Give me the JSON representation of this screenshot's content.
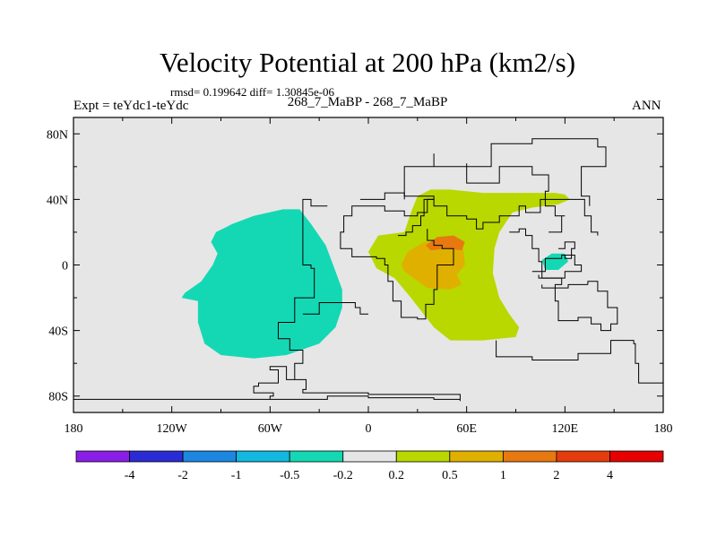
{
  "header": {
    "title": "Velocity Potential at 200 hPa (km2/s)",
    "stats": "rmsd= 0.199642 diff= 1.30845e-06",
    "expt": "Expt = teYdc1-teYdc",
    "subtitle": "268_7_MaBP - 268_7_MaBP",
    "season": "ANN"
  },
  "chart_data": {
    "type": "heatmap",
    "title": "Velocity Potential at 200 hPa (km2/s)",
    "xlabel": "",
    "ylabel": "",
    "xlim": [
      -180,
      180
    ],
    "ylim": [
      -90,
      90
    ],
    "x_tick_values": [
      -180,
      -120,
      -60,
      0,
      60,
      120,
      180
    ],
    "x_tick_labels": [
      "180",
      "120W",
      "60W",
      "0",
      "60E",
      "120E",
      "180"
    ],
    "y_tick_values": [
      80,
      40,
      0,
      -40,
      -80
    ],
    "y_tick_labels": [
      "80N",
      "40N",
      "0",
      "40S",
      "80S"
    ],
    "background_color": "#e6e6e6",
    "colorbar": {
      "labels": [
        "-4",
        "-2",
        "-1",
        "-0.5",
        "-0.2",
        "0.2",
        "0.5",
        "1",
        "2",
        "4"
      ],
      "colors": [
        "#8a1ee6",
        "#2b2bd6",
        "#1c87e0",
        "#12b8e0",
        "#14d8b4",
        "#e6e6e6",
        "#b9d800",
        "#e0b000",
        "#e87810",
        "#e43c0c",
        "#e60000"
      ]
    },
    "regions": [
      {
        "name": "negative-west",
        "level_range": "-0.5 to -0.2",
        "color": "#14d8b4",
        "lonlat": [
          [
            -112,
            -17
          ],
          [
            -102,
            -10
          ],
          [
            -95,
            0
          ],
          [
            -92,
            7
          ],
          [
            -96,
            14
          ],
          [
            -93,
            20
          ],
          [
            -83,
            25
          ],
          [
            -70,
            30
          ],
          [
            -52,
            34
          ],
          [
            -42,
            34
          ],
          [
            -35,
            25
          ],
          [
            -26,
            12
          ],
          [
            -20,
            -4
          ],
          [
            -16,
            -15
          ],
          [
            -16,
            -26
          ],
          [
            -20,
            -38
          ],
          [
            -30,
            -48
          ],
          [
            -50,
            -55
          ],
          [
            -70,
            -57
          ],
          [
            -90,
            -55
          ],
          [
            -100,
            -48
          ],
          [
            -104,
            -35
          ],
          [
            -104,
            -22
          ],
          [
            -114,
            -20
          ]
        ]
      },
      {
        "name": "negative-east",
        "level_range": "-0.5 to -0.2",
        "color": "#14d8b4",
        "lonlat": [
          [
            106,
            3
          ],
          [
            112,
            7
          ],
          [
            120,
            7
          ],
          [
            122,
            2
          ],
          [
            116,
            -3
          ],
          [
            108,
            -3
          ]
        ]
      },
      {
        "name": "positive-main",
        "level_range": "0.2 to 0.5",
        "color": "#b9d800",
        "lonlat": [
          [
            22,
            20
          ],
          [
            26,
            32
          ],
          [
            30,
            42
          ],
          [
            38,
            46
          ],
          [
            50,
            46
          ],
          [
            70,
            44
          ],
          [
            84,
            44
          ],
          [
            98,
            44
          ],
          [
            114,
            44
          ],
          [
            120,
            43
          ],
          [
            123,
            40
          ],
          [
            116,
            37
          ],
          [
            100,
            35
          ],
          [
            88,
            32
          ],
          [
            80,
            20
          ],
          [
            77,
            10
          ],
          [
            76,
            -5
          ],
          [
            80,
            -20
          ],
          [
            86,
            -30
          ],
          [
            92,
            -38
          ],
          [
            90,
            -44
          ],
          [
            70,
            -46
          ],
          [
            50,
            -46
          ],
          [
            40,
            -38
          ],
          [
            26,
            -20
          ],
          [
            16,
            -8
          ],
          [
            5,
            -2
          ],
          [
            0,
            8
          ],
          [
            6,
            18
          ]
        ]
      },
      {
        "name": "positive-core",
        "level_range": "0.5 to 1",
        "color": "#e0b000",
        "lonlat": [
          [
            20,
            0
          ],
          [
            24,
            8
          ],
          [
            34,
            14
          ],
          [
            50,
            14
          ],
          [
            58,
            10
          ],
          [
            59,
            0
          ],
          [
            54,
            -6
          ],
          [
            57,
            -12
          ],
          [
            50,
            -15
          ],
          [
            36,
            -14
          ],
          [
            22,
            -4
          ]
        ]
      },
      {
        "name": "positive-inner",
        "level_range": "1 to 2",
        "color": "#e87810",
        "lonlat": [
          [
            35,
            12
          ],
          [
            42,
            17
          ],
          [
            52,
            18
          ],
          [
            59,
            14
          ],
          [
            57,
            9
          ],
          [
            48,
            10
          ],
          [
            38,
            9
          ]
        ]
      }
    ],
    "coastlines": [
      [
        [
          -180,
          -82
        ],
        [
          -40,
          -82
        ],
        [
          -25,
          -80
        ],
        [
          0,
          -81
        ],
        [
          40,
          -82
        ],
        [
          56,
          -83
        ],
        [
          56,
          -79
        ],
        [
          30,
          -79
        ],
        [
          0,
          -78
        ],
        [
          -35,
          -78
        ],
        [
          -40,
          -76
        ],
        [
          -38,
          -70
        ],
        [
          -48,
          -70
        ],
        [
          -50,
          -62
        ],
        [
          -60,
          -64
        ],
        [
          -55,
          -72
        ],
        [
          -67,
          -74
        ],
        [
          -70,
          -78
        ],
        [
          -58,
          -80
        ],
        [
          -60,
          -82
        ]
      ],
      [
        [
          78,
          -46
        ],
        [
          78,
          -56
        ],
        [
          100,
          -58
        ],
        [
          120,
          -58
        ],
        [
          128,
          -54
        ],
        [
          148,
          -46
        ],
        [
          162,
          -48
        ],
        [
          163,
          -60
        ],
        [
          165,
          -72
        ],
        [
          180,
          -80
        ]
      ],
      [
        [
          -25,
          36
        ],
        [
          -35,
          36
        ],
        [
          -35,
          40
        ],
        [
          -40,
          40
        ],
        [
          -40,
          0
        ],
        [
          -35,
          -2
        ],
        [
          -33,
          -20
        ],
        [
          -45,
          -22
        ],
        [
          -45,
          -35
        ],
        [
          -55,
          -45
        ],
        [
          -48,
          -52
        ],
        [
          -40,
          -60
        ],
        [
          -45,
          -70
        ]
      ],
      [
        [
          -40,
          -30
        ],
        [
          -30,
          -23
        ],
        [
          -15,
          -23
        ],
        [
          -8,
          -26
        ],
        [
          -5,
          -30
        ],
        [
          0,
          -30
        ]
      ],
      [
        [
          18,
          18
        ],
        [
          23,
          20
        ],
        [
          27,
          24
        ],
        [
          32,
          30
        ],
        [
          34,
          40
        ],
        [
          40,
          36
        ],
        [
          48,
          30
        ],
        [
          60,
          28
        ],
        [
          66,
          22
        ],
        [
          70,
          26
        ],
        [
          80,
          30
        ],
        [
          88,
          30
        ],
        [
          92,
          36
        ],
        [
          96,
          32
        ],
        [
          105,
          40
        ],
        [
          120,
          40
        ],
        [
          132,
          30
        ],
        [
          136,
          20
        ],
        [
          140,
          18
        ]
      ],
      [
        [
          22,
          40
        ],
        [
          22,
          60
        ],
        [
          40,
          68
        ],
        [
          40,
          60
        ],
        [
          60,
          62
        ],
        [
          60,
          50
        ],
        [
          80,
          60
        ],
        [
          90,
          60
        ],
        [
          100,
          55
        ],
        [
          110,
          45
        ],
        [
          108,
          36
        ],
        [
          114,
          30
        ],
        [
          120,
          30
        ],
        [
          118,
          20
        ],
        [
          110,
          20
        ]
      ],
      [
        [
          60,
          60
        ],
        [
          75,
          74
        ],
        [
          100,
          77
        ],
        [
          140,
          72
        ],
        [
          145,
          60
        ],
        [
          130,
          50
        ],
        [
          130,
          42
        ],
        [
          135,
          36
        ]
      ],
      [
        [
          -5,
          40
        ],
        [
          10,
          44
        ],
        [
          22,
          42
        ],
        [
          40,
          40
        ],
        [
          36,
          32
        ],
        [
          30,
          30
        ],
        [
          22,
          33
        ],
        [
          10,
          36
        ],
        [
          -5,
          36
        ],
        [
          -10,
          30
        ],
        [
          -15,
          20
        ],
        [
          -17,
          10
        ],
        [
          -10,
          5
        ],
        [
          5,
          4
        ],
        [
          10,
          0
        ],
        [
          12,
          -10
        ],
        [
          15,
          -22
        ],
        [
          20,
          -32
        ],
        [
          30,
          -33
        ],
        [
          35,
          -24
        ],
        [
          40,
          -15
        ],
        [
          42,
          0
        ],
        [
          52,
          10
        ],
        [
          45,
          12
        ],
        [
          40,
          15
        ],
        [
          36,
          22
        ]
      ],
      [
        [
          86,
          20
        ],
        [
          92,
          22
        ],
        [
          96,
          18
        ],
        [
          100,
          10
        ],
        [
          104,
          2
        ],
        [
          106,
          -8
        ],
        [
          114,
          -8
        ],
        [
          118,
          -12
        ],
        [
          114,
          -14
        ],
        [
          106,
          -12
        ]
      ],
      [
        [
          134,
          -12
        ],
        [
          122,
          -14
        ],
        [
          114,
          -22
        ],
        [
          116,
          -34
        ],
        [
          128,
          -32
        ],
        [
          136,
          -36
        ],
        [
          142,
          -40
        ],
        [
          148,
          -36
        ],
        [
          152,
          -26
        ],
        [
          146,
          -16
        ],
        [
          140,
          -10
        ],
        [
          134,
          -12
        ]
      ],
      [
        [
          100,
          -4
        ],
        [
          108,
          4
        ],
        [
          118,
          6
        ],
        [
          126,
          0
        ],
        [
          130,
          -4
        ],
        [
          120,
          -8
        ],
        [
          104,
          -6
        ]
      ],
      [
        [
          116,
          10
        ],
        [
          120,
          14
        ],
        [
          126,
          10
        ],
        [
          124,
          4
        ],
        [
          120,
          6
        ]
      ]
    ]
  }
}
